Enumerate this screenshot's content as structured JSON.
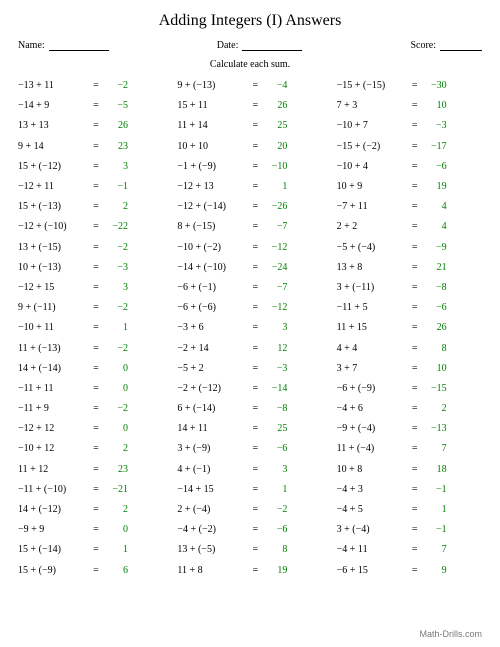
{
  "title": "Adding Integers (I) Answers",
  "header": {
    "name_label": "Name:",
    "date_label": "Date:",
    "score_label": "Score:"
  },
  "instruction": "Calculate each sum.",
  "answer_color": "#008000",
  "text_color": "#000000",
  "columns": [
    [
      {
        "a": -13,
        "b": 11,
        "ans": -2
      },
      {
        "a": -14,
        "b": 9,
        "ans": -5
      },
      {
        "a": 13,
        "b": 13,
        "ans": 26
      },
      {
        "a": 9,
        "b": 14,
        "ans": 23
      },
      {
        "a": 15,
        "b": -12,
        "ans": 3
      },
      {
        "a": -12,
        "b": 11,
        "ans": -1
      },
      {
        "a": 15,
        "b": -13,
        "ans": 2
      },
      {
        "a": -12,
        "b": -10,
        "ans": -22
      },
      {
        "a": 13,
        "b": -15,
        "ans": -2
      },
      {
        "a": 10,
        "b": -13,
        "ans": -3
      },
      {
        "a": -12,
        "b": 15,
        "ans": 3
      },
      {
        "a": 9,
        "b": -11,
        "ans": -2
      },
      {
        "a": -10,
        "b": 11,
        "ans": 1
      },
      {
        "a": 11,
        "b": -13,
        "ans": -2
      },
      {
        "a": 14,
        "b": -14,
        "ans": 0
      },
      {
        "a": -11,
        "b": 11,
        "ans": 0
      },
      {
        "a": -11,
        "b": 9,
        "ans": -2
      },
      {
        "a": -12,
        "b": 12,
        "ans": 0
      },
      {
        "a": -10,
        "b": 12,
        "ans": 2
      },
      {
        "a": 11,
        "b": 12,
        "ans": 23
      },
      {
        "a": -11,
        "b": -10,
        "ans": -21
      },
      {
        "a": 14,
        "b": -12,
        "ans": 2
      },
      {
        "a": -9,
        "b": 9,
        "ans": 0
      },
      {
        "a": 15,
        "b": -14,
        "ans": 1
      },
      {
        "a": 15,
        "b": -9,
        "ans": 6
      }
    ],
    [
      {
        "a": 9,
        "b": -13,
        "ans": -4
      },
      {
        "a": 15,
        "b": 11,
        "ans": 26
      },
      {
        "a": 11,
        "b": 14,
        "ans": 25
      },
      {
        "a": 10,
        "b": 10,
        "ans": 20
      },
      {
        "a": -1,
        "b": -9,
        "ans": -10
      },
      {
        "a": -12,
        "b": 13,
        "ans": 1
      },
      {
        "a": -12,
        "b": -14,
        "ans": -26
      },
      {
        "a": 8,
        "b": -15,
        "ans": -7
      },
      {
        "a": -10,
        "b": -2,
        "ans": -12
      },
      {
        "a": -14,
        "b": -10,
        "ans": -24
      },
      {
        "a": -6,
        "b": -1,
        "ans": -7
      },
      {
        "a": -6,
        "b": -6,
        "ans": -12
      },
      {
        "a": -3,
        "b": 6,
        "ans": 3
      },
      {
        "a": -2,
        "b": 14,
        "ans": 12
      },
      {
        "a": -5,
        "b": 2,
        "ans": -3
      },
      {
        "a": -2,
        "b": -12,
        "ans": -14
      },
      {
        "a": 6,
        "b": -14,
        "ans": -8
      },
      {
        "a": 14,
        "b": 11,
        "ans": 25
      },
      {
        "a": 3,
        "b": -9,
        "ans": -6
      },
      {
        "a": 4,
        "b": -1,
        "ans": 3
      },
      {
        "a": -14,
        "b": 15,
        "ans": 1
      },
      {
        "a": 2,
        "b": -4,
        "ans": -2
      },
      {
        "a": -4,
        "b": -2,
        "ans": -6
      },
      {
        "a": 13,
        "b": -5,
        "ans": 8
      },
      {
        "a": 11,
        "b": 8,
        "ans": 19
      }
    ],
    [
      {
        "a": -15,
        "b": -15,
        "ans": -30
      },
      {
        "a": 7,
        "b": 3,
        "ans": 10
      },
      {
        "a": -10,
        "b": 7,
        "ans": -3
      },
      {
        "a": -15,
        "b": -2,
        "ans": -17
      },
      {
        "a": -10,
        "b": 4,
        "ans": -6
      },
      {
        "a": 10,
        "b": 9,
        "ans": 19
      },
      {
        "a": -7,
        "b": 11,
        "ans": 4
      },
      {
        "a": 2,
        "b": 2,
        "ans": 4
      },
      {
        "a": -5,
        "b": -4,
        "ans": -9
      },
      {
        "a": 13,
        "b": 8,
        "ans": 21
      },
      {
        "a": 3,
        "b": -11,
        "ans": -8
      },
      {
        "a": -11,
        "b": 5,
        "ans": -6
      },
      {
        "a": 11,
        "b": 15,
        "ans": 26
      },
      {
        "a": 4,
        "b": 4,
        "ans": 8
      },
      {
        "a": 3,
        "b": 7,
        "ans": 10
      },
      {
        "a": -6,
        "b": -9,
        "ans": -15
      },
      {
        "a": -4,
        "b": 6,
        "ans": 2
      },
      {
        "a": -9,
        "b": -4,
        "ans": -13
      },
      {
        "a": 11,
        "b": -4,
        "ans": 7
      },
      {
        "a": 10,
        "b": 8,
        "ans": 18
      },
      {
        "a": -4,
        "b": 3,
        "ans": -1
      },
      {
        "a": -4,
        "b": 5,
        "ans": 1
      },
      {
        "a": 3,
        "b": -4,
        "ans": -1
      },
      {
        "a": -4,
        "b": 11,
        "ans": 7
      },
      {
        "a": -6,
        "b": 15,
        "ans": 9
      }
    ]
  ],
  "footer": "Math-Drills.com"
}
